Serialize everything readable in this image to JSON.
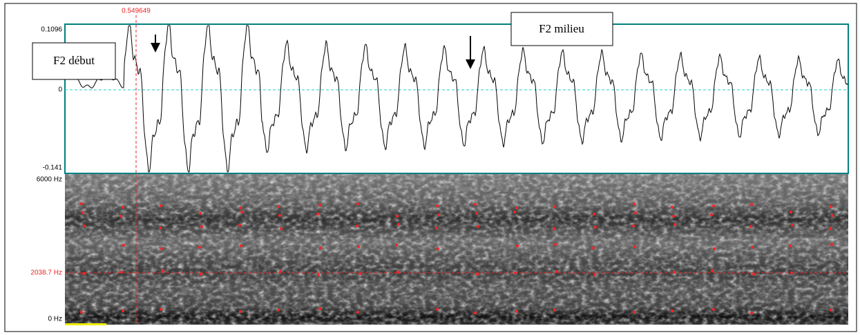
{
  "cursor_time": "0.549649",
  "waveform": {
    "y_max": "0.1096",
    "y_zero": "0",
    "y_min": "-0.141"
  },
  "spectrogram": {
    "f_max": "6000 Hz",
    "cursor_freq": "2038.7 Hz",
    "f_min": "0 Hz"
  },
  "annotations": {
    "start": "F2 début",
    "middle": "F2 milieu"
  }
}
